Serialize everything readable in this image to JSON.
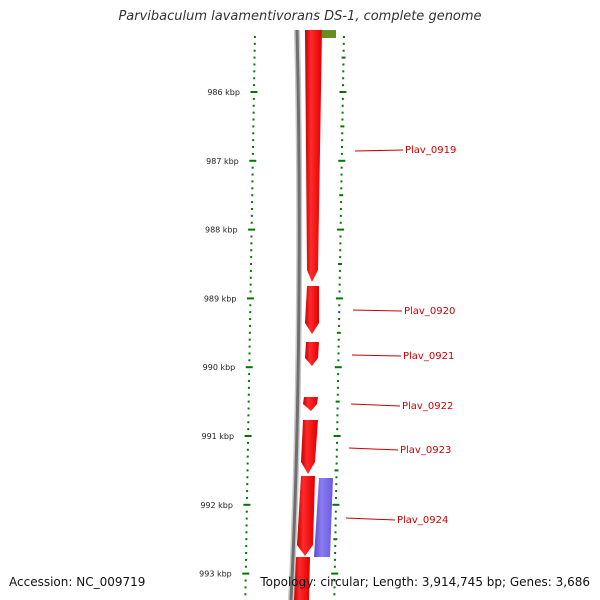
{
  "title": "Parvibaculum lavamentivorans DS-1, complete genome",
  "accession": "Accession: NC_009719",
  "summary": "Topology: circular; Length: 3,914,745 bp; Genes: 3,686",
  "scale": {
    "unit": "kbp",
    "ticks": [
      {
        "kbp": 986,
        "label": "986 kbp"
      },
      {
        "kbp": 987,
        "label": "987 kbp"
      },
      {
        "kbp": 988,
        "label": "988 kbp"
      },
      {
        "kbp": 989,
        "label": "989 kbp"
      },
      {
        "kbp": 990,
        "label": "990 kbp"
      },
      {
        "kbp": 991,
        "label": "991 kbp"
      },
      {
        "kbp": 992,
        "label": "992 kbp"
      },
      {
        "kbp": 993,
        "label": "993 kbp"
      }
    ]
  },
  "genes": [
    {
      "name": "Plav_0919",
      "strand": "+",
      "color": "#ff0000"
    },
    {
      "name": "Plav_0920",
      "strand": "+",
      "color": "#ff0000"
    },
    {
      "name": "Plav_0921",
      "strand": "+",
      "color": "#ff0000"
    },
    {
      "name": "Plav_0922",
      "strand": "+",
      "color": "#ff0000"
    },
    {
      "name": "Plav_0923",
      "strand": "+",
      "color": "#ff0000"
    },
    {
      "name": "Plav_0924",
      "strand": "-",
      "color": "#7b68ee"
    }
  ],
  "colors": {
    "backbone": "#777777",
    "tick": "#007700",
    "label": "#cc0000",
    "olive_feature": "#6b8e23"
  }
}
